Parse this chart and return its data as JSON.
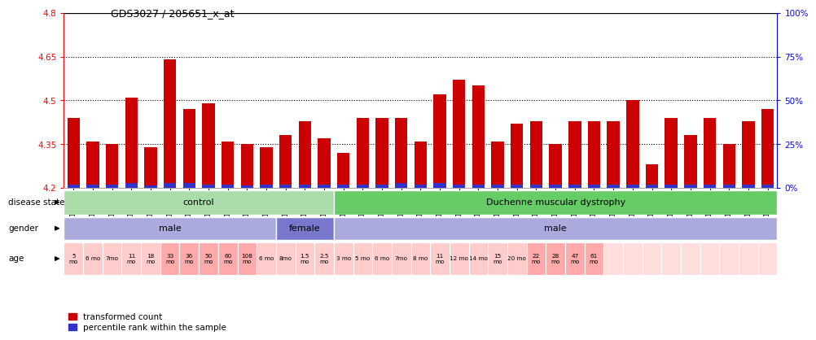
{
  "title": "GDS3027 / 205651_x_at",
  "samples": [
    "GSM139501",
    "GSM139504",
    "GSM139505",
    "GSM139506",
    "GSM139508",
    "GSM139509",
    "GSM139510",
    "GSM139511",
    "GSM139512",
    "GSM139513",
    "GSM139514",
    "GSM139502",
    "GSM139503",
    "GSM139507",
    "GSM139515",
    "GSM139516",
    "GSM139517",
    "GSM139518",
    "GSM139519",
    "GSM139520",
    "GSM139521",
    "GSM139522",
    "GSM139523",
    "GSM139524",
    "GSM139525",
    "GSM139526",
    "GSM139527",
    "GSM139528",
    "GSM139529",
    "GSM139530",
    "GSM139531",
    "GSM139532",
    "GSM139533",
    "GSM139534",
    "GSM139535",
    "GSM139536",
    "GSM139537"
  ],
  "values": [
    4.44,
    4.36,
    4.35,
    4.51,
    4.34,
    4.64,
    4.47,
    4.49,
    4.36,
    4.35,
    4.34,
    4.38,
    4.43,
    4.37,
    4.32,
    4.44,
    4.44,
    4.44,
    4.36,
    4.52,
    4.57,
    4.55,
    4.36,
    4.42,
    4.43,
    4.35,
    4.43,
    4.43,
    4.43,
    4.5,
    4.28,
    4.44,
    4.38,
    4.44,
    4.35,
    4.43,
    4.47
  ],
  "blue_heights": [
    0.012,
    0.012,
    0.012,
    0.018,
    0.008,
    0.018,
    0.018,
    0.012,
    0.012,
    0.008,
    0.012,
    0.012,
    0.012,
    0.012,
    0.012,
    0.012,
    0.012,
    0.018,
    0.012,
    0.018,
    0.012,
    0.012,
    0.012,
    0.012,
    0.012,
    0.012,
    0.012,
    0.012,
    0.012,
    0.012,
    0.012,
    0.012,
    0.012,
    0.012,
    0.012,
    0.012,
    0.012
  ],
  "ylim": [
    4.2,
    4.8
  ],
  "yticks": [
    4.2,
    4.35,
    4.5,
    4.65,
    4.8
  ],
  "ytick_labels": [
    "4.2",
    "4.35",
    "4.5",
    "4.65",
    "4.8"
  ],
  "right_ytick_labels": [
    "0%",
    "25%",
    "50%",
    "75%",
    "100%"
  ],
  "right_ytick_vals": [
    4.2,
    4.35,
    4.5,
    4.65,
    4.8
  ],
  "hlines": [
    4.35,
    4.5,
    4.65
  ],
  "bar_color": "#cc0000",
  "blue_color": "#3333cc",
  "bar_bottom": 4.2,
  "disease_state_groups": [
    {
      "label": "control",
      "start": 0,
      "end": 14,
      "color": "#aaddaa"
    },
    {
      "label": "Duchenne muscular dystrophy",
      "start": 14,
      "end": 37,
      "color": "#66cc66"
    }
  ],
  "gender_groups": [
    {
      "label": "male",
      "start": 0,
      "end": 11,
      "color": "#aaaadd"
    },
    {
      "label": "female",
      "start": 11,
      "end": 14,
      "color": "#7777cc"
    },
    {
      "label": "male",
      "start": 14,
      "end": 37,
      "color": "#aaaadd"
    }
  ],
  "age_sample_map": [
    [
      0,
      "5\nmo",
      "#ffcccc"
    ],
    [
      1,
      "6 mo",
      "#ffcccc"
    ],
    [
      2,
      "7mo",
      "#ffcccc"
    ],
    [
      3,
      "11\nmo",
      "#ffcccc"
    ],
    [
      4,
      "18\nmo",
      "#ffcccc"
    ],
    [
      5,
      "33\nmo",
      "#ffaaaa"
    ],
    [
      6,
      "36\nmo",
      "#ffaaaa"
    ],
    [
      7,
      "50\nmo",
      "#ffaaaa"
    ],
    [
      8,
      "60\nmo",
      "#ffaaaa"
    ],
    [
      9,
      "108\nmo",
      "#ffaaaa"
    ],
    [
      10,
      "6 mo",
      "#ffcccc"
    ],
    [
      11,
      "8mo",
      "#ffcccc"
    ],
    [
      12,
      "1.5\nmo",
      "#ffcccc"
    ],
    [
      13,
      "2.5\nmo",
      "#ffcccc"
    ],
    [
      14,
      "3 mo",
      "#ffcccc"
    ],
    [
      15,
      "5 mo",
      "#ffcccc"
    ],
    [
      16,
      "6 mo",
      "#ffcccc"
    ],
    [
      17,
      "7mo",
      "#ffcccc"
    ],
    [
      18,
      "8 mo",
      "#ffcccc"
    ],
    [
      19,
      "11\nmo",
      "#ffcccc"
    ],
    [
      20,
      "12 mo",
      "#ffcccc"
    ],
    [
      21,
      "14 mo",
      "#ffcccc"
    ],
    [
      22,
      "15\nmo",
      "#ffcccc"
    ],
    [
      23,
      "20 mo",
      "#ffcccc"
    ],
    [
      24,
      "22\nmo",
      "#ffaaaa"
    ],
    [
      25,
      "28\nmo",
      "#ffaaaa"
    ],
    [
      26,
      "47\nmo",
      "#ffaaaa"
    ],
    [
      27,
      "61\nmo",
      "#ffaaaa"
    ],
    [
      28,
      "",
      "#ffdddd"
    ],
    [
      29,
      "",
      "#ffdddd"
    ],
    [
      30,
      "",
      "#ffdddd"
    ],
    [
      31,
      "",
      "#ffdddd"
    ],
    [
      32,
      "",
      "#ffdddd"
    ],
    [
      33,
      "",
      "#ffdddd"
    ],
    [
      34,
      "",
      "#ffdddd"
    ],
    [
      35,
      "",
      "#ffdddd"
    ],
    [
      36,
      "",
      "#ffdddd"
    ]
  ],
  "label_disease_state": "disease state",
  "label_gender": "gender",
  "label_age": "age"
}
